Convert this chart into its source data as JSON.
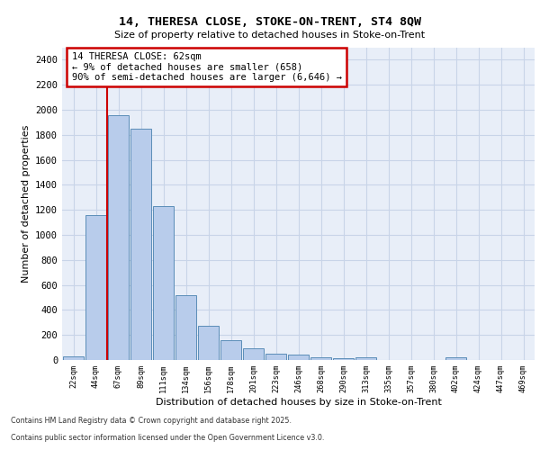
{
  "title_line1": "14, THERESA CLOSE, STOKE-ON-TRENT, ST4 8QW",
  "title_line2": "Size of property relative to detached houses in Stoke-on-Trent",
  "xlabel": "Distribution of detached houses by size in Stoke-on-Trent",
  "ylabel": "Number of detached properties",
  "categories": [
    "22sqm",
    "44sqm",
    "67sqm",
    "89sqm",
    "111sqm",
    "134sqm",
    "156sqm",
    "178sqm",
    "201sqm",
    "223sqm",
    "246sqm",
    "268sqm",
    "290sqm",
    "313sqm",
    "335sqm",
    "357sqm",
    "380sqm",
    "402sqm",
    "424sqm",
    "447sqm",
    "469sqm"
  ],
  "values": [
    30,
    1155,
    1960,
    1850,
    1230,
    520,
    275,
    155,
    90,
    48,
    40,
    22,
    15,
    20,
    0,
    0,
    0,
    18,
    0,
    0,
    0
  ],
  "bar_color": "#b8cceb",
  "bar_edge_color": "#5b8db8",
  "annotation_text": "14 THERESA CLOSE: 62sqm\n← 9% of detached houses are smaller (658)\n90% of semi-detached houses are larger (6,646) →",
  "vline_index": 1.5,
  "annotation_box_color": "#ffffff",
  "annotation_box_edge_color": "#cc0000",
  "vline_color": "#cc0000",
  "grid_color": "#c8d4e8",
  "bg_color": "#e8eef8",
  "footer_line1": "Contains HM Land Registry data © Crown copyright and database right 2025.",
  "footer_line2": "Contains public sector information licensed under the Open Government Licence v3.0.",
  "ylim": [
    0,
    2500
  ],
  "yticks": [
    0,
    200,
    400,
    600,
    800,
    1000,
    1200,
    1400,
    1600,
    1800,
    2000,
    2200,
    2400
  ]
}
